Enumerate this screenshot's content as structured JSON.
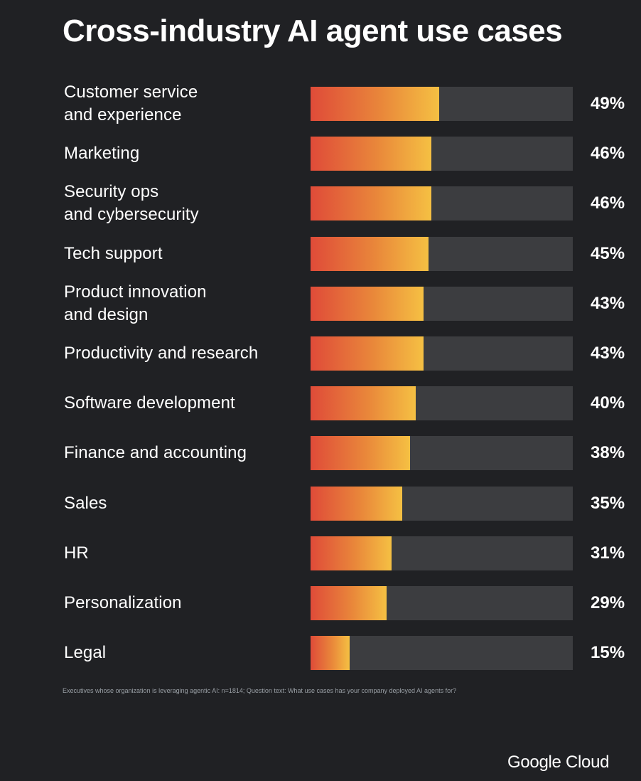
{
  "title": "Cross-industry AI agent use cases",
  "chart_data": {
    "type": "bar",
    "orientation": "horizontal",
    "title": "Cross-industry AI agent use cases",
    "categories": [
      "Customer service\nand experience",
      "Marketing",
      "Security ops\nand cybersecurity",
      "Tech support",
      "Product innovation\nand design",
      "Productivity and research",
      "Software development",
      "Finance and accounting",
      "Sales",
      "HR",
      "Personalization",
      "Legal"
    ],
    "values": [
      49,
      46,
      46,
      45,
      43,
      43,
      40,
      38,
      35,
      31,
      29,
      15
    ],
    "value_labels": [
      "49%",
      "46%",
      "46%",
      "45%",
      "43%",
      "43%",
      "40%",
      "38%",
      "35%",
      "31%",
      "29%",
      "15%"
    ],
    "xlim": [
      0,
      100
    ],
    "unit": "%",
    "grid": false
  },
  "footnote": "Executives whose organization is leveraging agentic AI: n=1814; Question text: What use cases has your company deployed AI agents for?",
  "brand": "Google Cloud",
  "colors": {
    "background": "#202124",
    "track": "#3c3d40",
    "gradient_start": "#df4b39",
    "gradient_end": "#f5c043",
    "text": "#ffffff"
  }
}
